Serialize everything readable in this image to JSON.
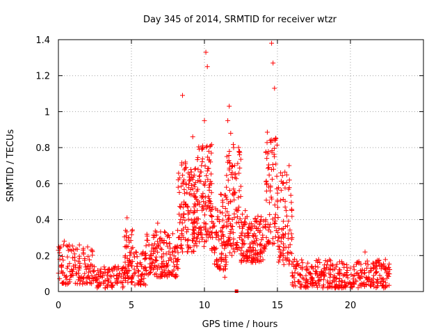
{
  "chart_data": {
    "type": "scatter",
    "title": "Day 345 of 2014, SRMTID for receiver wtzr",
    "xlabel": "GPS time / hours",
    "ylabel": "SRMTID / TECUs",
    "xlim": [
      0,
      25
    ],
    "ylim": [
      0,
      1.4
    ],
    "grid": true,
    "marker": "+",
    "color": "#ff0000",
    "xticks": [
      0,
      5,
      10,
      15,
      20
    ],
    "xtick_labels": [
      "0",
      "5",
      "10",
      "15",
      "20"
    ],
    "yticks": [
      0,
      0.2,
      0.4,
      0.6,
      0.8,
      1.0,
      1.2,
      1.4
    ],
    "ytick_labels": [
      "0",
      "0.2",
      "0.4",
      "0.6",
      "0.8",
      "1",
      "1.2",
      "1.4"
    ],
    "series": [
      {
        "name": "SRMTID",
        "x": [
          0.0,
          0.1,
          0.2,
          0.3,
          0.4,
          0.5,
          0.6,
          0.8,
          1.0,
          1.2,
          1.4,
          1.6,
          1.8,
          2.0,
          2.2,
          2.4,
          2.6,
          2.8,
          3.0,
          3.2,
          3.4,
          3.6,
          3.8,
          4.0,
          4.2,
          4.4,
          4.6,
          4.7,
          4.8,
          4.9,
          5.0,
          5.1,
          5.2,
          5.4,
          5.6,
          5.8,
          6.0,
          6.2,
          6.4,
          6.6,
          6.8,
          7.0,
          7.2,
          7.4,
          7.6,
          7.8,
          8.0,
          8.2,
          8.3,
          8.4,
          8.5,
          8.6,
          8.7,
          8.8,
          9.0,
          9.2,
          9.4,
          9.5,
          9.6,
          9.8,
          10.0,
          10.1,
          10.2,
          10.3,
          10.4,
          10.5,
          10.6,
          10.8,
          11.0,
          11.2,
          11.4,
          11.5,
          11.6,
          11.7,
          11.8,
          11.9,
          12.0,
          12.1,
          12.3,
          12.4,
          12.6,
          12.8,
          13.0,
          13.2,
          13.4,
          13.6,
          13.8,
          14.0,
          14.2,
          14.4,
          14.5,
          14.6,
          14.7,
          14.8,
          14.9,
          15.0,
          15.1,
          15.2,
          15.4,
          15.6,
          15.8,
          16.0,
          16.2,
          16.4,
          16.6,
          16.8,
          17.0,
          17.2,
          17.4,
          17.6,
          17.8,
          18.0,
          18.2,
          18.4,
          18.6,
          18.8,
          19.0,
          19.2,
          19.4,
          19.6,
          19.8,
          20.0,
          20.2,
          20.4,
          20.6,
          20.8,
          21.0,
          21.2,
          21.4,
          21.6,
          21.8,
          22.0,
          22.2,
          22.4,
          22.6
        ],
        "y": [
          0.23,
          0.18,
          0.14,
          0.1,
          0.28,
          0.08,
          0.13,
          0.11,
          0.09,
          0.1,
          0.12,
          0.07,
          0.1,
          0.08,
          0.11,
          0.06,
          0.07,
          0.05,
          0.08,
          0.06,
          0.12,
          0.05,
          0.09,
          0.07,
          0.1,
          0.13,
          0.34,
          0.41,
          0.3,
          0.2,
          0.05,
          0.09,
          0.1,
          0.14,
          0.16,
          0.22,
          0.2,
          0.26,
          0.18,
          0.31,
          0.38,
          0.24,
          0.21,
          0.27,
          0.3,
          0.22,
          0.25,
          0.18,
          0.3,
          0.42,
          1.09,
          0.62,
          0.72,
          0.55,
          0.65,
          0.86,
          0.48,
          0.45,
          0.33,
          0.7,
          0.95,
          1.33,
          1.25,
          0.78,
          0.6,
          0.42,
          0.38,
          0.3,
          0.4,
          0.18,
          0.08,
          0.36,
          0.95,
          1.03,
          0.88,
          0.7,
          0.8,
          0.55,
          0.45,
          0.36,
          0.43,
          0.45,
          0.3,
          0.22,
          0.28,
          0.18,
          0.26,
          0.3,
          0.4,
          0.58,
          0.84,
          1.38,
          1.27,
          1.13,
          0.85,
          0.5,
          0.35,
          0.2,
          0.35,
          0.45,
          0.7,
          0.3,
          0.14,
          0.1,
          0.09,
          0.07,
          0.12,
          0.1,
          0.06,
          0.14,
          0.08,
          0.11,
          0.09,
          0.15,
          0.08,
          0.12,
          0.07,
          0.1,
          0.06,
          0.05,
          0.09,
          0.04,
          0.07,
          0.1,
          0.08,
          0.12,
          0.22,
          0.15,
          0.13,
          0.09,
          0.11,
          0.14,
          0.07,
          0.05,
          0.1
        ],
        "cloud": [
          {
            "x0": 0.0,
            "x1": 2.5,
            "ymin": 0.04,
            "ymax": 0.26,
            "n": 120
          },
          {
            "x0": 2.5,
            "x1": 4.5,
            "ymin": 0.02,
            "ymax": 0.14,
            "n": 80
          },
          {
            "x0": 4.5,
            "x1": 5.2,
            "ymin": 0.05,
            "ymax": 0.36,
            "n": 60
          },
          {
            "x0": 5.2,
            "x1": 6.0,
            "ymin": 0.03,
            "ymax": 0.22,
            "n": 45
          },
          {
            "x0": 6.0,
            "x1": 8.2,
            "ymin": 0.08,
            "ymax": 0.34,
            "n": 150
          },
          {
            "x0": 8.2,
            "x1": 9.5,
            "ymin": 0.22,
            "ymax": 0.72,
            "n": 130
          },
          {
            "x0": 9.5,
            "x1": 10.5,
            "ymin": 0.25,
            "ymax": 0.82,
            "n": 110
          },
          {
            "x0": 10.5,
            "x1": 11.5,
            "ymin": 0.12,
            "ymax": 0.55,
            "n": 90
          },
          {
            "x0": 11.5,
            "x1": 12.5,
            "ymin": 0.2,
            "ymax": 0.82,
            "n": 100
          },
          {
            "x0": 12.5,
            "x1": 14.2,
            "ymin": 0.16,
            "ymax": 0.42,
            "n": 140
          },
          {
            "x0": 14.2,
            "x1": 15.0,
            "ymin": 0.25,
            "ymax": 0.9,
            "n": 70
          },
          {
            "x0": 15.0,
            "x1": 16.0,
            "ymin": 0.15,
            "ymax": 0.68,
            "n": 80
          },
          {
            "x0": 16.0,
            "x1": 22.7,
            "ymin": 0.02,
            "ymax": 0.18,
            "n": 330
          }
        ]
      }
    ],
    "outlier_box": {
      "x": 12.2,
      "y": 0.0
    }
  }
}
